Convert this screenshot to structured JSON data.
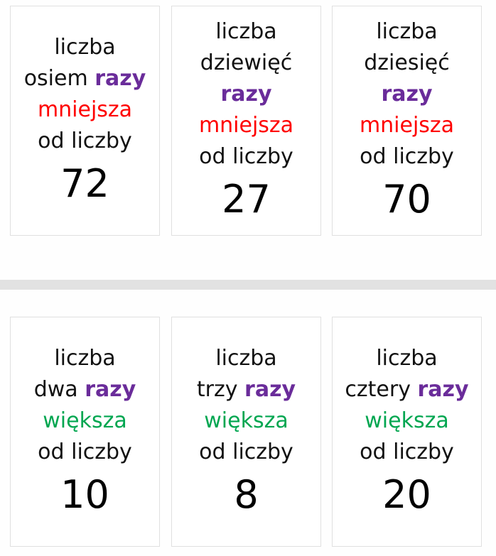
{
  "top_row": [
    {
      "line1": "liczba",
      "word": "osiem",
      "razy": "razy",
      "relation": "mniejsza",
      "line4": "od liczby",
      "number": "72"
    },
    {
      "line1": "liczba",
      "word": "dziewięć",
      "razy": "razy",
      "relation": "mniejsza",
      "line4": "od liczby",
      "number": "27"
    },
    {
      "line1": "liczba",
      "word": "dziesięć",
      "razy": "razy",
      "relation": "mniejsza",
      "line4": "od liczby",
      "number": "70"
    }
  ],
  "bottom_row": [
    {
      "line1": "liczba",
      "word": "dwa",
      "razy": "razy",
      "relation": "większa",
      "line4": "od liczby",
      "number": "10"
    },
    {
      "line1": "liczba",
      "word": "trzy",
      "razy": "razy",
      "relation": "większa",
      "line4": "od liczby",
      "number": "8"
    },
    {
      "line1": "liczba",
      "word": "cztery",
      "razy": "razy",
      "relation": "większa",
      "line4": "od liczby",
      "number": "20"
    }
  ],
  "colors": {
    "razy": "#6a2c9a",
    "mniejsza": "#ff0000",
    "wieksza": "#00a650"
  }
}
